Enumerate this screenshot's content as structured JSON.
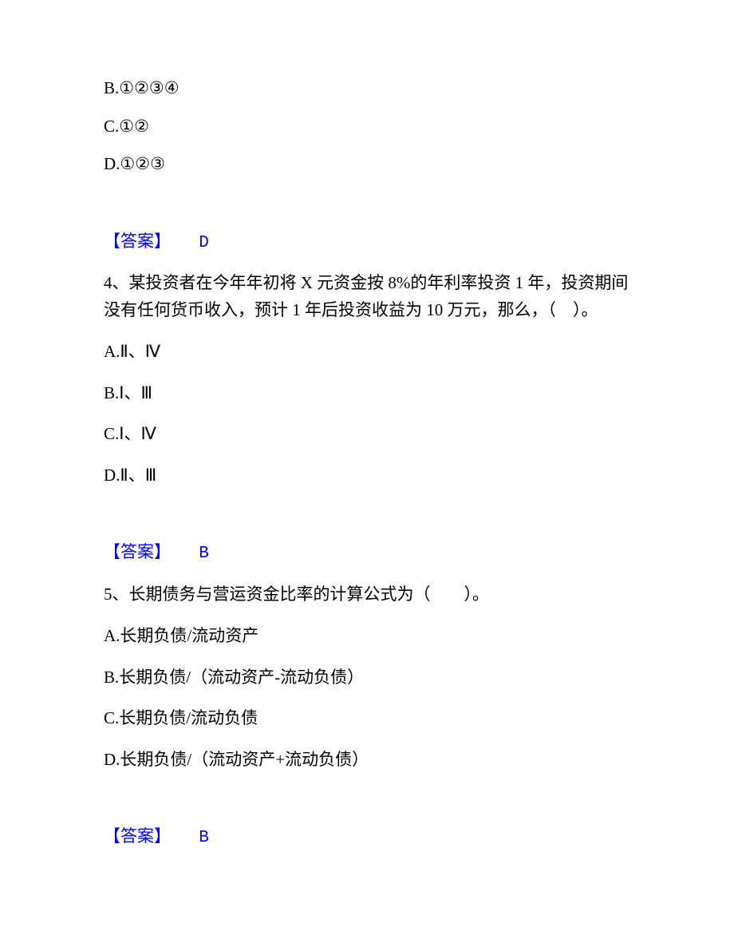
{
  "q3_options": {
    "b": "B.①②③④",
    "c": "C.①②",
    "d": "D.①②③"
  },
  "q3_answer": {
    "label": "【答案】",
    "value": "D"
  },
  "q4": {
    "text": "4、某投资者在今年年初将 X 元资金按 8%的年利率投资 1 年，投资期间没有任何货币收入，预计 1 年后投资收益为 10 万元，那么，（　）。",
    "a": "A.Ⅱ、Ⅳ",
    "b": "B.Ⅰ、Ⅲ",
    "c": "C.Ⅰ、Ⅳ",
    "d": "D.Ⅱ、Ⅲ"
  },
  "q4_answer": {
    "label": "【答案】",
    "value": "B"
  },
  "q5": {
    "text": "5、长期债务与营运资金比率的计算公式为（　　）。",
    "a": "A.长期负债/流动资产",
    "b": "B.长期负债/（流动资产-流动负债）",
    "c": "C.长期负债/流动负债",
    "d": "D.长期负债/（流动资产+流动负债）"
  },
  "q5_answer": {
    "label": "【答案】",
    "value": "B"
  },
  "colors": {
    "text": "#000000",
    "answer": "#0000ff",
    "background": "#ffffff"
  }
}
